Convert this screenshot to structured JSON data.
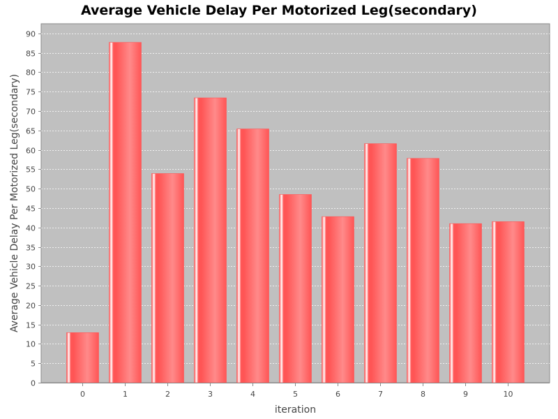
{
  "chart_data": {
    "type": "bar",
    "title": "Average Vehicle Delay Per Motorized Leg(secondary)",
    "xlabel": "iteration",
    "ylabel": "Average Vehicle Delay Per Motorized Leg(secondary)",
    "categories": [
      "0",
      "1",
      "2",
      "3",
      "4",
      "5",
      "6",
      "7",
      "8",
      "9",
      "10"
    ],
    "series": [
      {
        "values": [
          12.9,
          87.7,
          53.9,
          73.4,
          65.4,
          48.5,
          42.8,
          61.6,
          57.8,
          41.0,
          41.5
        ]
      }
    ],
    "ylim": [
      0,
      92.5
    ],
    "yticks": [
      0,
      5,
      10,
      15,
      20,
      25,
      30,
      35,
      40,
      45,
      50,
      55,
      60,
      65,
      70,
      75,
      80,
      85,
      90
    ],
    "grid": true,
    "legend": "none",
    "colors": {
      "bar": "#ff5555",
      "bar_light": "#ff8a8a",
      "bar_highlight": "#ffffff",
      "plot_background": "#c0c0c0",
      "gridline": "#ffffff"
    }
  }
}
